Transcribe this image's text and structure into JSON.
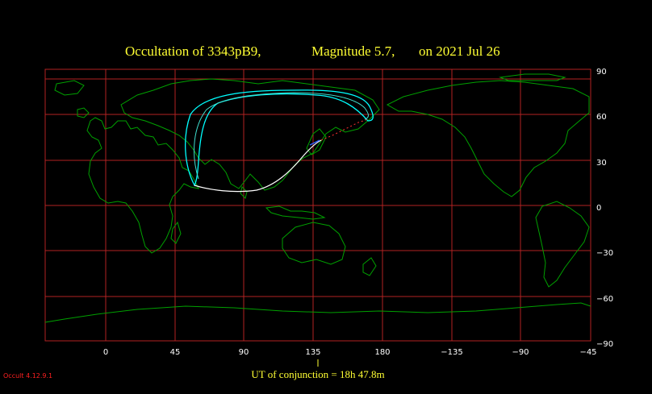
{
  "title": {
    "object_label": "Occultation  of  3343pB9,",
    "magnitude_label": "Magnitude 5.7,",
    "date_label": "on  2021 Jul 26"
  },
  "map": {
    "projection": "equirectangular",
    "lon_ticks": [
      "0",
      "45",
      "90",
      "135",
      "180",
      "−135",
      "−90",
      "−45"
    ],
    "lat_ticks": [
      "90",
      "60",
      "30",
      "0",
      "−30",
      "−60",
      "−90"
    ],
    "grid": true,
    "colors": {
      "background": "#000000",
      "grid": "#b22222",
      "coastline": "#00a000",
      "path_outer": "#00ffff",
      "path_inner": "#40e0d0",
      "central_line": "#ffffff",
      "extension": "#ff3030",
      "title_text": "#ffff33",
      "tick_text": "#ffffff"
    }
  },
  "footer": {
    "conjunction_label": "UT of conjunction = 18h 47.8m",
    "version_label": "Occult 4.12.9.1"
  }
}
